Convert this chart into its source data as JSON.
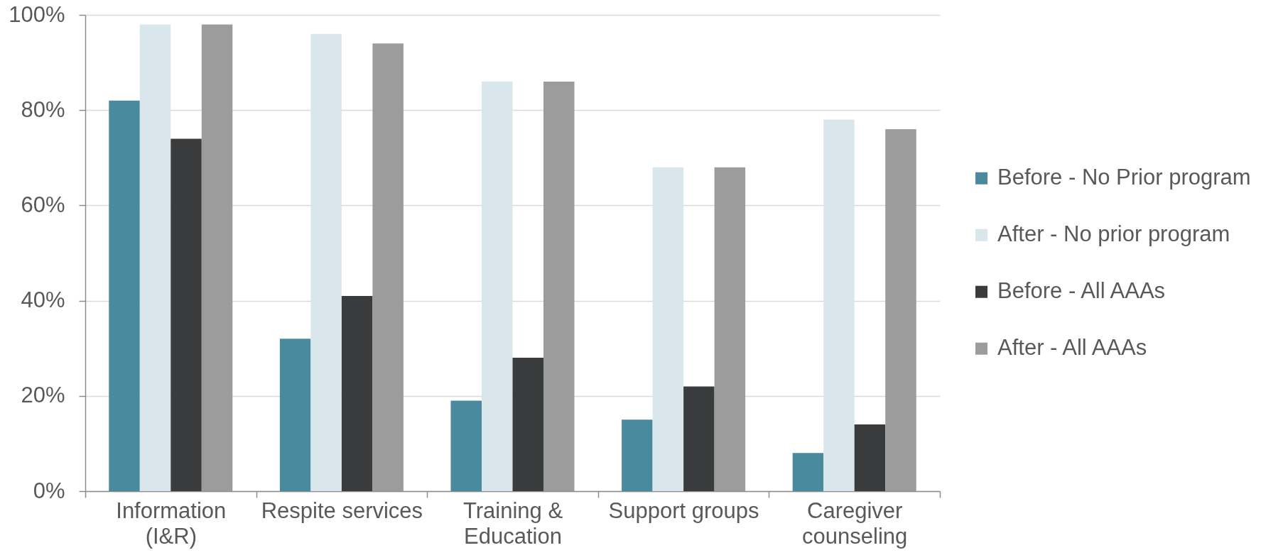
{
  "chart_data": {
    "type": "bar",
    "categories": [
      "Information (I&R)",
      "Respite services",
      "Training & Education",
      "Support groups",
      "Caregiver counseling"
    ],
    "series": [
      {
        "name": "Before - No Prior program",
        "color": "#4a8a9e",
        "values": [
          82,
          32,
          19,
          15,
          8
        ]
      },
      {
        "name": "After - No prior program",
        "color": "#d9e7ed",
        "values": [
          98,
          96,
          86,
          68,
          78
        ]
      },
      {
        "name": "Before - All AAAs",
        "color": "#3a3b3d",
        "values": [
          74,
          41,
          28,
          22,
          14
        ]
      },
      {
        "name": "After - All AAAs",
        "color": "#9c9c9d",
        "values": [
          98,
          94,
          86,
          68,
          76
        ]
      }
    ],
    "ylim": [
      0,
      100
    ],
    "yticks": [
      {
        "value": 0,
        "label": "0%"
      },
      {
        "value": 20,
        "label": "20%"
      },
      {
        "value": 40,
        "label": "40%"
      },
      {
        "value": 60,
        "label": "60%"
      },
      {
        "value": 80,
        "label": "80%"
      },
      {
        "value": 100,
        "label": "100%"
      }
    ],
    "grid": "y",
    "legend": "right"
  }
}
